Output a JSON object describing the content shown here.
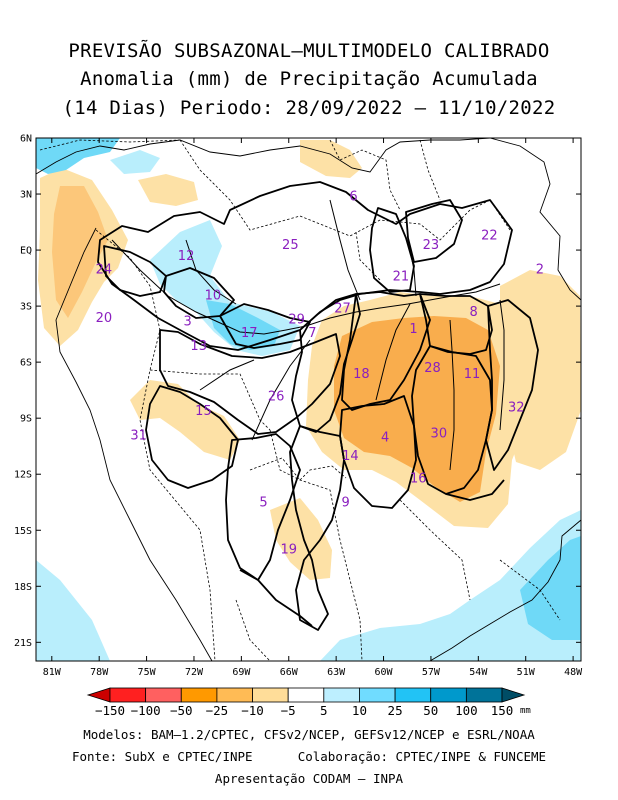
{
  "title": {
    "line1": "PREVISÃO SUBSAZONAL–MULTIMODELO CALIBRADO",
    "line2": "Anomalia (mm) de Precipitação Acumulada",
    "line3": "(14 Dias) Periodo: 28/09/2022 – 11/10/2022"
  },
  "map": {
    "lat_labels": [
      "6N",
      "3N",
      "EQ",
      "3S",
      "6S",
      "9S",
      "12S",
      "15S",
      "18S",
      "21S"
    ],
    "lon_labels": [
      "81W",
      "78W",
      "75W",
      "72W",
      "69W",
      "66W",
      "63W",
      "60W",
      "57W",
      "54W",
      "51W",
      "48W"
    ],
    "extent": {
      "lon": [
        -82,
        -47.5
      ],
      "lat": [
        -22,
        6
      ]
    },
    "basins": [
      {
        "id": "1",
        "lon": -58.1,
        "lat": -4.2
      },
      {
        "id": "2",
        "lon": -50.1,
        "lat": -1.0
      },
      {
        "id": "3",
        "lon": -72.4,
        "lat": -3.8
      },
      {
        "id": "4",
        "lon": -59.9,
        "lat": -10.0
      },
      {
        "id": "5",
        "lon": -67.6,
        "lat": -13.5
      },
      {
        "id": "6",
        "lon": -61.9,
        "lat": 2.9
      },
      {
        "id": "7",
        "lon": -64.5,
        "lat": -4.4
      },
      {
        "id": "8",
        "lon": -54.3,
        "lat": -3.3
      },
      {
        "id": "9",
        "lon": -62.4,
        "lat": -13.5
      },
      {
        "id": "10",
        "lon": -70.8,
        "lat": -2.4
      },
      {
        "id": "11",
        "lon": -54.4,
        "lat": -6.6
      },
      {
        "id": "12",
        "lon": -72.5,
        "lat": -0.3
      },
      {
        "id": "13",
        "lon": -71.7,
        "lat": -5.1
      },
      {
        "id": "14",
        "lon": -62.1,
        "lat": -11.0
      },
      {
        "id": "15",
        "lon": -71.4,
        "lat": -8.6
      },
      {
        "id": "16",
        "lon": -57.8,
        "lat": -12.2
      },
      {
        "id": "17",
        "lon": -68.5,
        "lat": -4.4
      },
      {
        "id": "18",
        "lon": -61.4,
        "lat": -6.6
      },
      {
        "id": "19",
        "lon": -66.0,
        "lat": -16.0
      },
      {
        "id": "20",
        "lon": -77.7,
        "lat": -3.6
      },
      {
        "id": "21",
        "lon": -58.9,
        "lat": -1.4
      },
      {
        "id": "22",
        "lon": -53.3,
        "lat": 0.8
      },
      {
        "id": "23",
        "lon": -57.0,
        "lat": 0.3
      },
      {
        "id": "24",
        "lon": -77.7,
        "lat": -1.0
      },
      {
        "id": "25",
        "lon": -65.9,
        "lat": 0.3
      },
      {
        "id": "26",
        "lon": -66.8,
        "lat": -7.8
      },
      {
        "id": "27",
        "lon": -62.6,
        "lat": -3.1
      },
      {
        "id": "28",
        "lon": -56.9,
        "lat": -6.3
      },
      {
        "id": "29",
        "lon": -65.5,
        "lat": -3.7
      },
      {
        "id": "30",
        "lon": -56.5,
        "lat": -9.8
      },
      {
        "id": "31",
        "lon": -75.5,
        "lat": -9.9
      },
      {
        "id": "32",
        "lon": -51.6,
        "lat": -8.4
      }
    ]
  },
  "colorbar": {
    "colors": [
      "#cc0000",
      "#ff2020",
      "#ff6060",
      "#ff9900",
      "#ffbb55",
      "#ffdd99",
      "#ffffff",
      "#bdefff",
      "#70dcff",
      "#22c3f5",
      "#0099cc",
      "#007399",
      "#004d66"
    ],
    "labels": [
      "−150",
      "−100",
      "−50",
      "−25",
      "−10",
      "−5",
      "5",
      "10",
      "25",
      "50",
      "100",
      "150"
    ],
    "unit": "mm"
  },
  "anomaly_colors": {
    "neg_light": "#fde1a6",
    "neg_mid": "#fcc77a",
    "neg_strong": "#f9ad4d",
    "pos_light": "#b9eefc",
    "pos_mid": "#6fd9f7",
    "pos_strong": "#23c2f0"
  },
  "credits": {
    "line1": "Modelos: BAM–1.2/CPTEC, CFSv2/NCEP, GEFSv12/NCEP e ESRL/NOAA",
    "line2": "Fonte: SubX e CPTEC/INPE      Colaboração: CPTEC/INPE & FUNCEME",
    "line3": "Apresentação CODAM – INPA"
  }
}
